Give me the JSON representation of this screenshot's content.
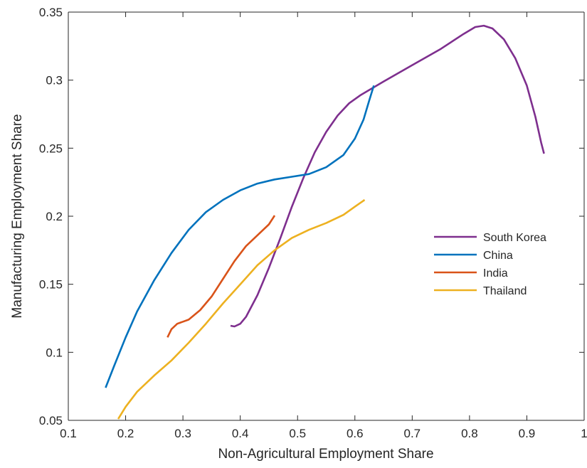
{
  "chart_data": {
    "type": "line",
    "title": "",
    "xlabel": "Non-Agricultural Employment Share",
    "ylabel": "Manufacturing Employment Share",
    "xlim": [
      0.1,
      1.0
    ],
    "ylim": [
      0.05,
      0.35
    ],
    "xticks": [
      0.1,
      0.2,
      0.3,
      0.4,
      0.5,
      0.6,
      0.7,
      0.8,
      0.9,
      1.0
    ],
    "xtick_labels": [
      "0.1",
      "0.2",
      "0.3",
      "0.4",
      "0.5",
      "0.6",
      "0.7",
      "0.8",
      "0.9",
      "1"
    ],
    "yticks": [
      0.05,
      0.1,
      0.15,
      0.2,
      0.25,
      0.3,
      0.35
    ],
    "ytick_labels": [
      "0.05",
      "0.1",
      "0.15",
      "0.2",
      "0.25",
      "0.3",
      "0.35"
    ],
    "grid": false,
    "legend_position": "right",
    "series": [
      {
        "name": "South Korea",
        "color": "#7E2F8E",
        "points": [
          [
            0.383,
            0.1195
          ],
          [
            0.39,
            0.119
          ],
          [
            0.4,
            0.121
          ],
          [
            0.41,
            0.126
          ],
          [
            0.43,
            0.142
          ],
          [
            0.45,
            0.162
          ],
          [
            0.47,
            0.184
          ],
          [
            0.49,
            0.207
          ],
          [
            0.51,
            0.228
          ],
          [
            0.53,
            0.247
          ],
          [
            0.55,
            0.262
          ],
          [
            0.57,
            0.274
          ],
          [
            0.59,
            0.283
          ],
          [
            0.61,
            0.289
          ],
          [
            0.65,
            0.299
          ],
          [
            0.7,
            0.311
          ],
          [
            0.75,
            0.323
          ],
          [
            0.79,
            0.334
          ],
          [
            0.81,
            0.339
          ],
          [
            0.825,
            0.34
          ],
          [
            0.84,
            0.338
          ],
          [
            0.86,
            0.33
          ],
          [
            0.88,
            0.316
          ],
          [
            0.9,
            0.296
          ],
          [
            0.915,
            0.273
          ],
          [
            0.925,
            0.254
          ],
          [
            0.93,
            0.246
          ]
        ]
      },
      {
        "name": "China",
        "color": "#0072BD",
        "points": [
          [
            0.165,
            0.074
          ],
          [
            0.18,
            0.09
          ],
          [
            0.2,
            0.111
          ],
          [
            0.22,
            0.13
          ],
          [
            0.25,
            0.153
          ],
          [
            0.28,
            0.173
          ],
          [
            0.31,
            0.19
          ],
          [
            0.34,
            0.203
          ],
          [
            0.37,
            0.212
          ],
          [
            0.4,
            0.219
          ],
          [
            0.43,
            0.224
          ],
          [
            0.46,
            0.227
          ],
          [
            0.49,
            0.229
          ],
          [
            0.52,
            0.231
          ],
          [
            0.55,
            0.236
          ],
          [
            0.58,
            0.245
          ],
          [
            0.6,
            0.257
          ],
          [
            0.615,
            0.271
          ],
          [
            0.625,
            0.285
          ],
          [
            0.633,
            0.296
          ]
        ]
      },
      {
        "name": "India",
        "color": "#D95319",
        "points": [
          [
            0.273,
            0.111
          ],
          [
            0.28,
            0.117
          ],
          [
            0.29,
            0.121
          ],
          [
            0.3,
            0.1225
          ],
          [
            0.31,
            0.124
          ],
          [
            0.33,
            0.131
          ],
          [
            0.35,
            0.141
          ],
          [
            0.37,
            0.154
          ],
          [
            0.39,
            0.167
          ],
          [
            0.41,
            0.178
          ],
          [
            0.43,
            0.186
          ],
          [
            0.45,
            0.194
          ],
          [
            0.46,
            0.2005
          ]
        ]
      },
      {
        "name": "Thailand",
        "color": "#EDB120",
        "points": [
          [
            0.187,
            0.051
          ],
          [
            0.2,
            0.06
          ],
          [
            0.22,
            0.071
          ],
          [
            0.25,
            0.083
          ],
          [
            0.28,
            0.094
          ],
          [
            0.31,
            0.107
          ],
          [
            0.34,
            0.121
          ],
          [
            0.37,
            0.136
          ],
          [
            0.4,
            0.15
          ],
          [
            0.43,
            0.164
          ],
          [
            0.46,
            0.175
          ],
          [
            0.49,
            0.184
          ],
          [
            0.52,
            0.19
          ],
          [
            0.55,
            0.195
          ],
          [
            0.58,
            0.201
          ],
          [
            0.6,
            0.207
          ],
          [
            0.617,
            0.212
          ]
        ]
      }
    ]
  }
}
